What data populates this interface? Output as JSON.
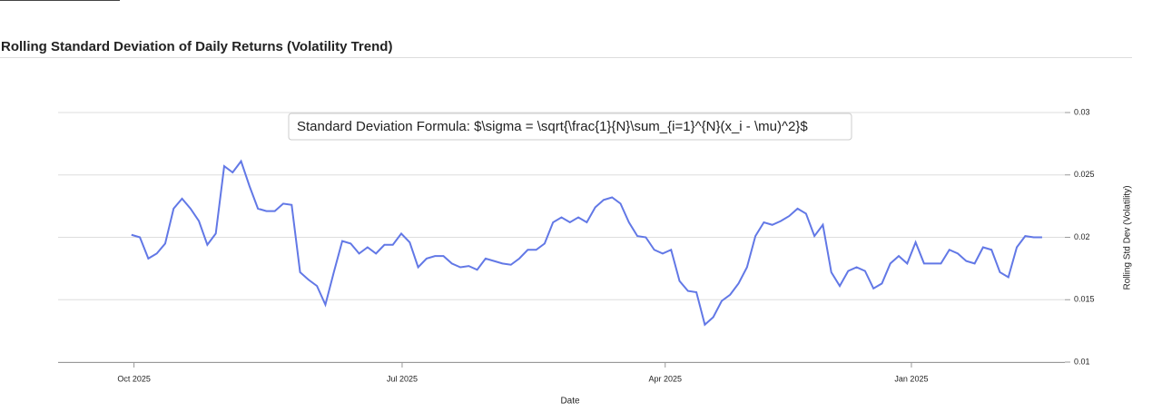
{
  "chart_data": {
    "type": "line",
    "title": "Rolling Standard Deviation of Daily Returns (Volatility Trend)",
    "annotation": "Standard Deviation Formula: $\\sigma = \\sqrt{\\frac{1}{N}\\sum_{i=1}^{N}(x_i - \\mu)^2}$",
    "x_label": "Date",
    "y_label": "Rolling Std Dev (Volatility)",
    "xlim": [
      -8.7,
      110.7
    ],
    "xticks": [
      {
        "value": 0.3,
        "label": "Oct 2025"
      },
      {
        "value": 32.1,
        "label": "Jul 2025"
      },
      {
        "value": 63.3,
        "label": "Apr 2025"
      },
      {
        "value": 92.5,
        "label": "Jan 2025"
      }
    ],
    "ylim": [
      0.01,
      0.03
    ],
    "yticks": [
      0.01,
      0.015,
      0.02,
      0.025,
      0.03
    ],
    "y_axis_side": "right",
    "grid": true,
    "series": [
      {
        "color": "#6278e6",
        "values": [
          0.0202,
          0.02,
          0.0183,
          0.0187,
          0.0195,
          0.0223,
          0.0231,
          0.0223,
          0.0213,
          0.0194,
          0.0203,
          0.0257,
          0.0252,
          0.0261,
          0.0241,
          0.0223,
          0.0221,
          0.0221,
          0.0227,
          0.0226,
          0.0172,
          0.0166,
          0.0161,
          0.0146,
          0.0172,
          0.0197,
          0.0195,
          0.0187,
          0.0192,
          0.0187,
          0.0194,
          0.0194,
          0.0203,
          0.0196,
          0.0176,
          0.0183,
          0.0185,
          0.0185,
          0.0179,
          0.0176,
          0.0177,
          0.0174,
          0.0183,
          0.0181,
          0.0179,
          0.0178,
          0.0183,
          0.019,
          0.019,
          0.0195,
          0.0212,
          0.0216,
          0.0212,
          0.0216,
          0.0212,
          0.0224,
          0.023,
          0.0232,
          0.0227,
          0.0212,
          0.0201,
          0.02,
          0.019,
          0.0187,
          0.019,
          0.0165,
          0.0157,
          0.0156,
          0.013,
          0.0136,
          0.0149,
          0.0154,
          0.0163,
          0.0176,
          0.0201,
          0.0212,
          0.021,
          0.0213,
          0.0217,
          0.0223,
          0.0219,
          0.0201,
          0.021,
          0.0172,
          0.0161,
          0.0173,
          0.0176,
          0.0173,
          0.0159,
          0.0163,
          0.0179,
          0.0185,
          0.0179,
          0.0196,
          0.0179,
          0.0179,
          0.0179,
          0.019,
          0.0187,
          0.0181,
          0.0179,
          0.0192,
          0.019,
          0.0172,
          0.0168,
          0.0192,
          0.0201,
          0.02,
          0.02
        ]
      }
    ]
  }
}
